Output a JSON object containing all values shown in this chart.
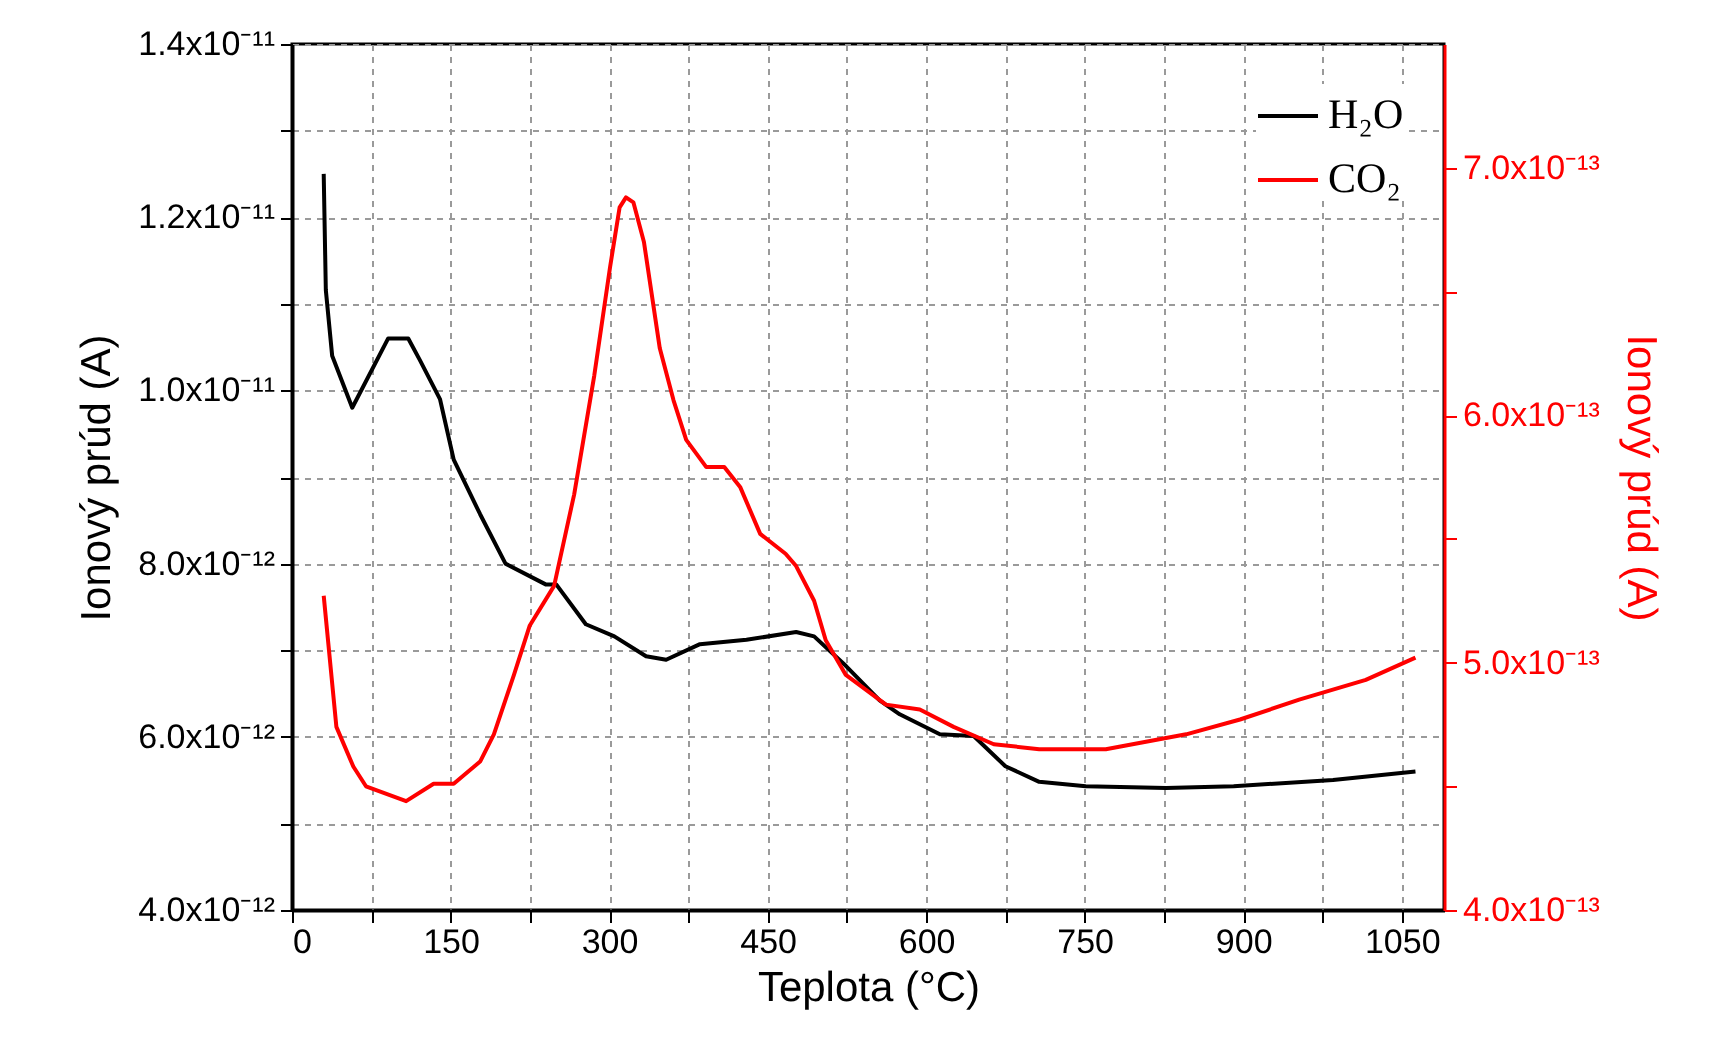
{
  "chart_data": {
    "type": "line",
    "xlabel": "Teplota (°C)",
    "ylabel": "Ionový prúd (A)",
    "y2label": "Ionový prúd (A)",
    "xlim": [
      0,
      1090
    ],
    "xticks": [
      0,
      {
        "value": 75,
        "label": null
      },
      150,
      {
        "value": 225,
        "label": null
      },
      300,
      {
        "value": 375,
        "label": null
      },
      450,
      {
        "value": 525,
        "label": null
      },
      600,
      {
        "value": 675,
        "label": null
      },
      750,
      {
        "value": 825,
        "label": null
      },
      900,
      {
        "value": 975,
        "label": null
      },
      1050
    ],
    "ylim": [
      4e-12,
      1.4e-11
    ],
    "yticks": [
      {
        "value": 4e-12,
        "label": "4.0x10⁻¹²"
      },
      {
        "value": 5e-12,
        "label": null
      },
      {
        "value": 6e-12,
        "label": "6.0x10⁻¹²"
      },
      {
        "value": 7e-12,
        "label": null
      },
      {
        "value": 8e-12,
        "label": "8.0x10⁻¹²"
      },
      {
        "value": 9e-12,
        "label": null
      },
      {
        "value": 1e-11,
        "label": "1.0x10⁻¹¹"
      },
      {
        "value": 1.1e-11,
        "label": null
      },
      {
        "value": 1.2e-11,
        "label": "1.2x10⁻¹¹"
      },
      {
        "value": 1.3e-11,
        "label": null
      },
      {
        "value": 1.4e-11,
        "label": "1.4x10⁻¹¹"
      }
    ],
    "y2lim": [
      4e-13,
      7.5e-13
    ],
    "y2ticks": [
      {
        "value": 4e-13,
        "label": "4.0x10⁻¹³"
      },
      {
        "value": 4.5e-13,
        "label": null
      },
      {
        "value": 5e-13,
        "label": "5.0x10⁻¹³"
      },
      {
        "value": 5.5e-13,
        "label": null
      },
      {
        "value": 6e-13,
        "label": "6.0x10⁻¹³"
      },
      {
        "value": 6.5e-13,
        "label": null
      },
      {
        "value": 7e-13,
        "label": "7.0x10⁻¹³"
      }
    ],
    "grid": true,
    "legend": "top right",
    "series": [
      {
        "name": "H₂O",
        "color": "#000000",
        "x": [
          30,
          32,
          38,
          57,
          91,
          110,
          121,
          140,
          153,
          178,
          202,
          240,
          250,
          278,
          305,
          335,
          354,
          386,
          430,
          477,
          494,
          524,
          556,
          575,
          613,
          645,
          675,
          707,
          751,
          827,
          891,
          985,
          1063
        ],
        "values": [
          1.25e-11,
          1.116e-11,
          1.04e-11,
          9.8e-12,
          1.06e-11,
          1.06e-11,
          1.035e-11,
          9.9e-12,
          9.2e-12,
          8.57e-12,
          8e-12,
          7.76e-12,
          7.76e-12,
          7.3e-12,
          7.16e-12,
          6.93e-12,
          6.89e-12,
          7.07e-12,
          7.12e-12,
          7.21e-12,
          7.16e-12,
          6.82e-12,
          6.42e-12,
          6.26e-12,
          6.03e-12,
          6.01e-12,
          5.66e-12,
          5.48e-12,
          5.43e-12,
          5.41e-12,
          5.43e-12,
          5.5e-12,
          5.6e-12
        ]
      },
      {
        "name": "CO₂",
        "color": "#ff0000",
        "axis": "y2",
        "x": [
          30,
          42,
          58,
          70,
          108,
          134,
          153,
          178,
          191,
          210,
          225,
          248,
          267,
          286,
          301,
          310,
          316,
          323,
          333,
          348,
          361,
          373,
          392,
          409,
          424,
          443,
          467,
          477,
          494,
          505,
          524,
          562,
          594,
          626,
          664,
          707,
          751,
          770,
          846,
          897,
          953,
          1016,
          1063
        ],
        "values": [
          5.27e-13,
          4.74e-13,
          4.58e-13,
          4.5e-13,
          4.44e-13,
          4.51e-13,
          4.51e-13,
          4.6e-13,
          4.71e-13,
          4.95e-13,
          5.15e-13,
          5.31e-13,
          5.68e-13,
          6.16e-13,
          6.6e-13,
          6.84e-13,
          6.88e-13,
          6.86e-13,
          6.7e-13,
          6.27e-13,
          6.06e-13,
          5.9e-13,
          5.79e-13,
          5.79e-13,
          5.71e-13,
          5.52e-13,
          5.44e-13,
          5.39e-13,
          5.25e-13,
          5.09e-13,
          4.95e-13,
          4.83e-13,
          4.81e-13,
          4.74e-13,
          4.67e-13,
          4.65e-13,
          4.65e-13,
          4.65e-13,
          4.71e-13,
          4.77e-13,
          4.85e-13,
          4.93e-13,
          5.02e-13
        ]
      }
    ]
  }
}
